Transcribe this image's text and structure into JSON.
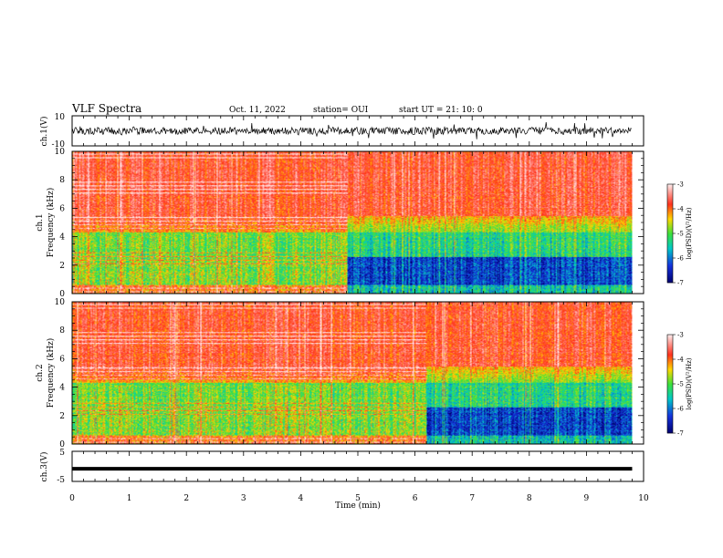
{
  "header": {
    "title": "VLF Spectra",
    "date": "Oct. 11, 2022",
    "station": "station= OUI",
    "start": "start  UT =  21: 10: 0"
  },
  "chart_data": [
    {
      "type": "line",
      "panel": "waveform-ch1",
      "ylabel": "ch.1(V)",
      "ylim": [
        -10,
        10
      ],
      "yticks": [
        "10",
        "-10"
      ],
      "xlim": [
        0,
        10
      ]
    },
    {
      "type": "heatmap",
      "panel": "spectrogram-ch1",
      "ylabel": "ch.1\nFrequency  (kHz)",
      "ylabel_lines": [
        "ch.1",
        "Frequency  (kHz)"
      ],
      "ylim": [
        0,
        10
      ],
      "yticks": [
        "0",
        "2",
        "4",
        "6",
        "8",
        "10"
      ],
      "xlim": [
        0,
        10
      ],
      "data_end_min": 9.8,
      "transition_min": 4.8,
      "colorbar": {
        "label": "log(PSD)(V²/Hz)",
        "range": [
          -7,
          -3
        ],
        "ticks": [
          "-3",
          "-4",
          "-5",
          "-6",
          "-7"
        ]
      }
    },
    {
      "type": "heatmap",
      "panel": "spectrogram-ch2",
      "ylabel": "ch.2\nFrequency  (kHz)",
      "ylabel_lines": [
        "ch.2",
        "Frequency  (kHz)"
      ],
      "ylim": [
        0,
        10
      ],
      "yticks": [
        "0",
        "2",
        "4",
        "6",
        "8",
        "10"
      ],
      "xlim": [
        0,
        10
      ],
      "data_end_min": 9.8,
      "transition_min": 6.2,
      "colorbar": {
        "label": "log(PSD)(V²/Hz)",
        "range": [
          -7,
          -3
        ],
        "ticks": [
          "-3",
          "-4",
          "-5",
          "-6",
          "-7"
        ]
      }
    },
    {
      "type": "line",
      "panel": "waveform-ch3",
      "ylabel": "ch.3(V)",
      "ylim": [
        -5,
        5
      ],
      "yticks": [
        "5",
        "-5"
      ],
      "xlim": [
        0,
        10
      ],
      "level": -0.8,
      "xlabel": "Time  (min)",
      "xticks": [
        "0",
        "1",
        "2",
        "3",
        "4",
        "5",
        "6",
        "7",
        "8",
        "9",
        "10"
      ]
    }
  ],
  "colors": {
    "hot": "#ff2a1a",
    "warm": "#ffd000",
    "mid": "#3ee03e",
    "cool": "#00c8c8",
    "cold": "#1030d0",
    "deep": "#000070"
  }
}
